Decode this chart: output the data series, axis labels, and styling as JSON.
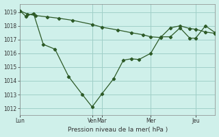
{
  "xlabel": "Pression niveau de la mer( hPa )",
  "background_color": "#cff0ea",
  "grid_color": "#a0cfc8",
  "line_color": "#2d5a27",
  "ylim": [
    1011.5,
    1019.6
  ],
  "yticks": [
    1012,
    1013,
    1014,
    1015,
    1016,
    1017,
    1018,
    1019
  ],
  "xlim": [
    0,
    100
  ],
  "xtick_positions": [
    0,
    37,
    42,
    67,
    90
  ],
  "xtick_labels": [
    "Lun",
    "Ven",
    "Mar",
    "Mer",
    "Jeu"
  ],
  "vline_positions": [
    0,
    37,
    42,
    67,
    90
  ],
  "series1_x": [
    0,
    4,
    8,
    14,
    20,
    27,
    37,
    42,
    50,
    57,
    63,
    67,
    72,
    77,
    82,
    87,
    90,
    95,
    100
  ],
  "series1_y": [
    1019.1,
    1018.85,
    1018.75,
    1018.65,
    1018.55,
    1018.4,
    1018.1,
    1017.9,
    1017.7,
    1017.5,
    1017.35,
    1017.2,
    1017.15,
    1017.85,
    1018.0,
    1017.8,
    1017.75,
    1017.55,
    1017.45
  ],
  "series2_x": [
    0,
    3,
    7,
    12,
    18,
    25,
    32,
    37,
    42,
    48,
    53,
    57,
    61,
    67,
    72,
    77,
    82,
    87,
    90,
    95,
    100
  ],
  "series2_y": [
    1019.1,
    1018.7,
    1018.9,
    1016.65,
    1016.3,
    1014.3,
    1013.0,
    1012.1,
    1013.05,
    1014.15,
    1015.5,
    1015.6,
    1015.55,
    1016.0,
    1017.2,
    1017.2,
    1017.85,
    1017.1,
    1017.1,
    1018.0,
    1017.5
  ]
}
